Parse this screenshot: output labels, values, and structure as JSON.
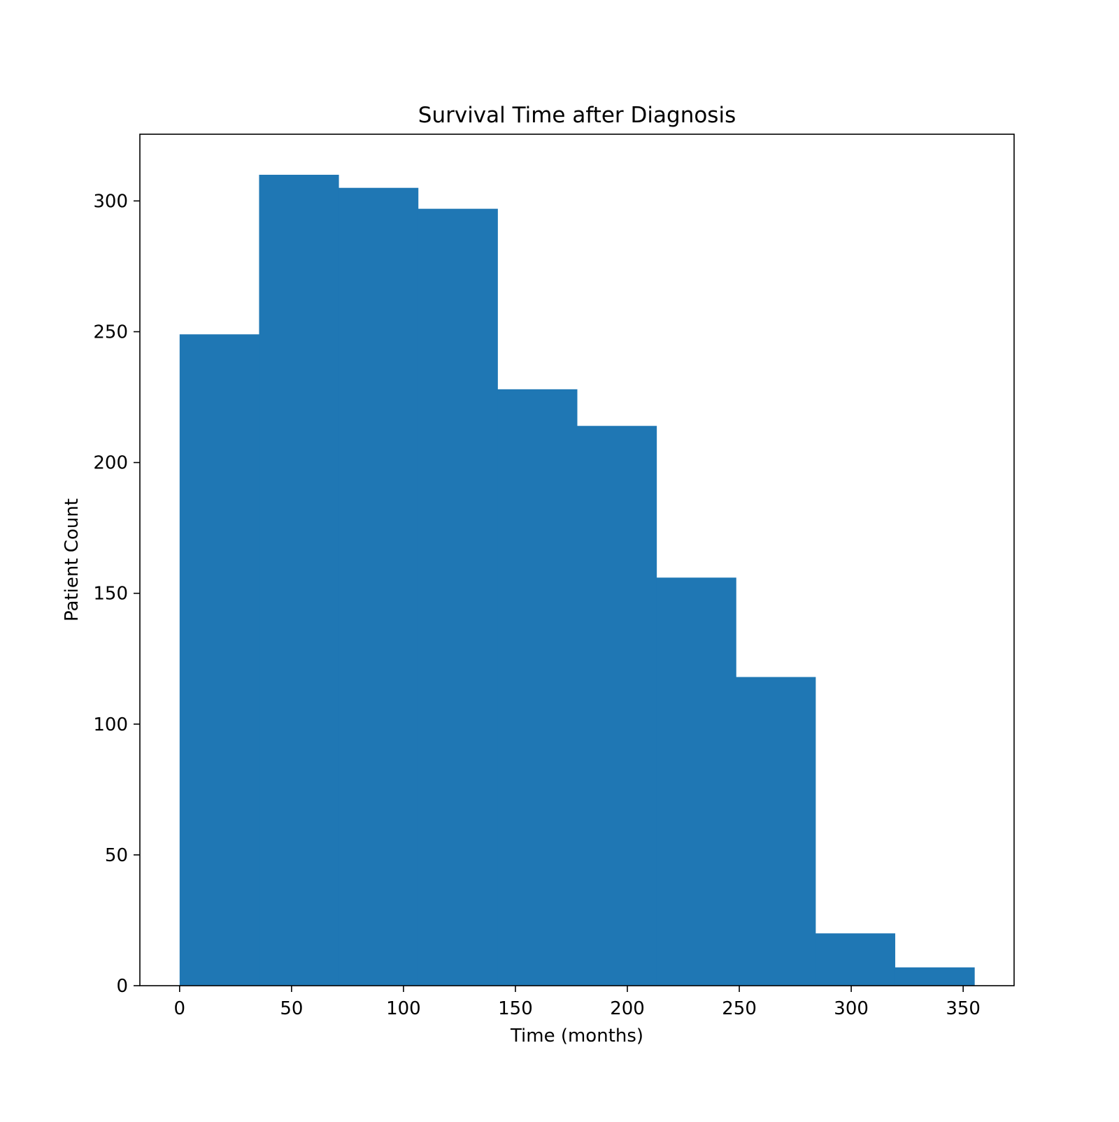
{
  "chart_data": {
    "type": "bar",
    "title": "Survival Time after Diagnosis",
    "xlabel": "Time (months)",
    "ylabel": "Patient Count",
    "bin_edges": [
      0,
      35.5,
      71,
      106.5,
      142,
      177.5,
      213,
      248.5,
      284,
      319.5,
      355
    ],
    "values": [
      249,
      310,
      305,
      297,
      228,
      214,
      156,
      118,
      20,
      7
    ],
    "xlim": [
      -17.75,
      372.75
    ],
    "ylim": [
      0,
      325.5
    ],
    "xticks": [
      0,
      50,
      100,
      150,
      200,
      250,
      300,
      350
    ],
    "yticks": [
      0,
      50,
      100,
      150,
      200,
      250,
      300
    ],
    "bar_color": "#1f77b4",
    "grid": false
  }
}
